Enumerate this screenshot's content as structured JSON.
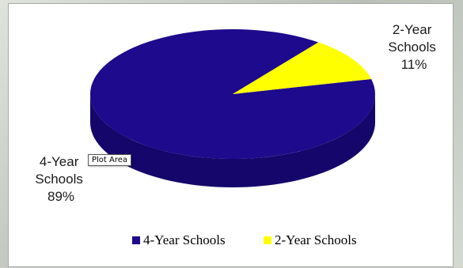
{
  "chart_data": {
    "type": "pie",
    "title": "",
    "categories": [
      "4-Year Schools",
      "2-Year Schools"
    ],
    "values": [
      89,
      11
    ],
    "unit": "%",
    "slice_labels": [
      {
        "lines": [
          "4-Year",
          "Schools",
          "89%"
        ]
      },
      {
        "lines": [
          "2-Year",
          "Schools",
          "11%"
        ]
      }
    ],
    "colors": [
      "#1d0a8c",
      "#ffff00"
    ],
    "depth_colors": [
      "#14066a",
      "#c9c900"
    ],
    "legend": {
      "placement": "bottom",
      "entries": [
        "4-Year Schools",
        "2-Year Schools"
      ]
    },
    "three_d": true
  },
  "tooltip": {
    "text": "Plot Area"
  }
}
